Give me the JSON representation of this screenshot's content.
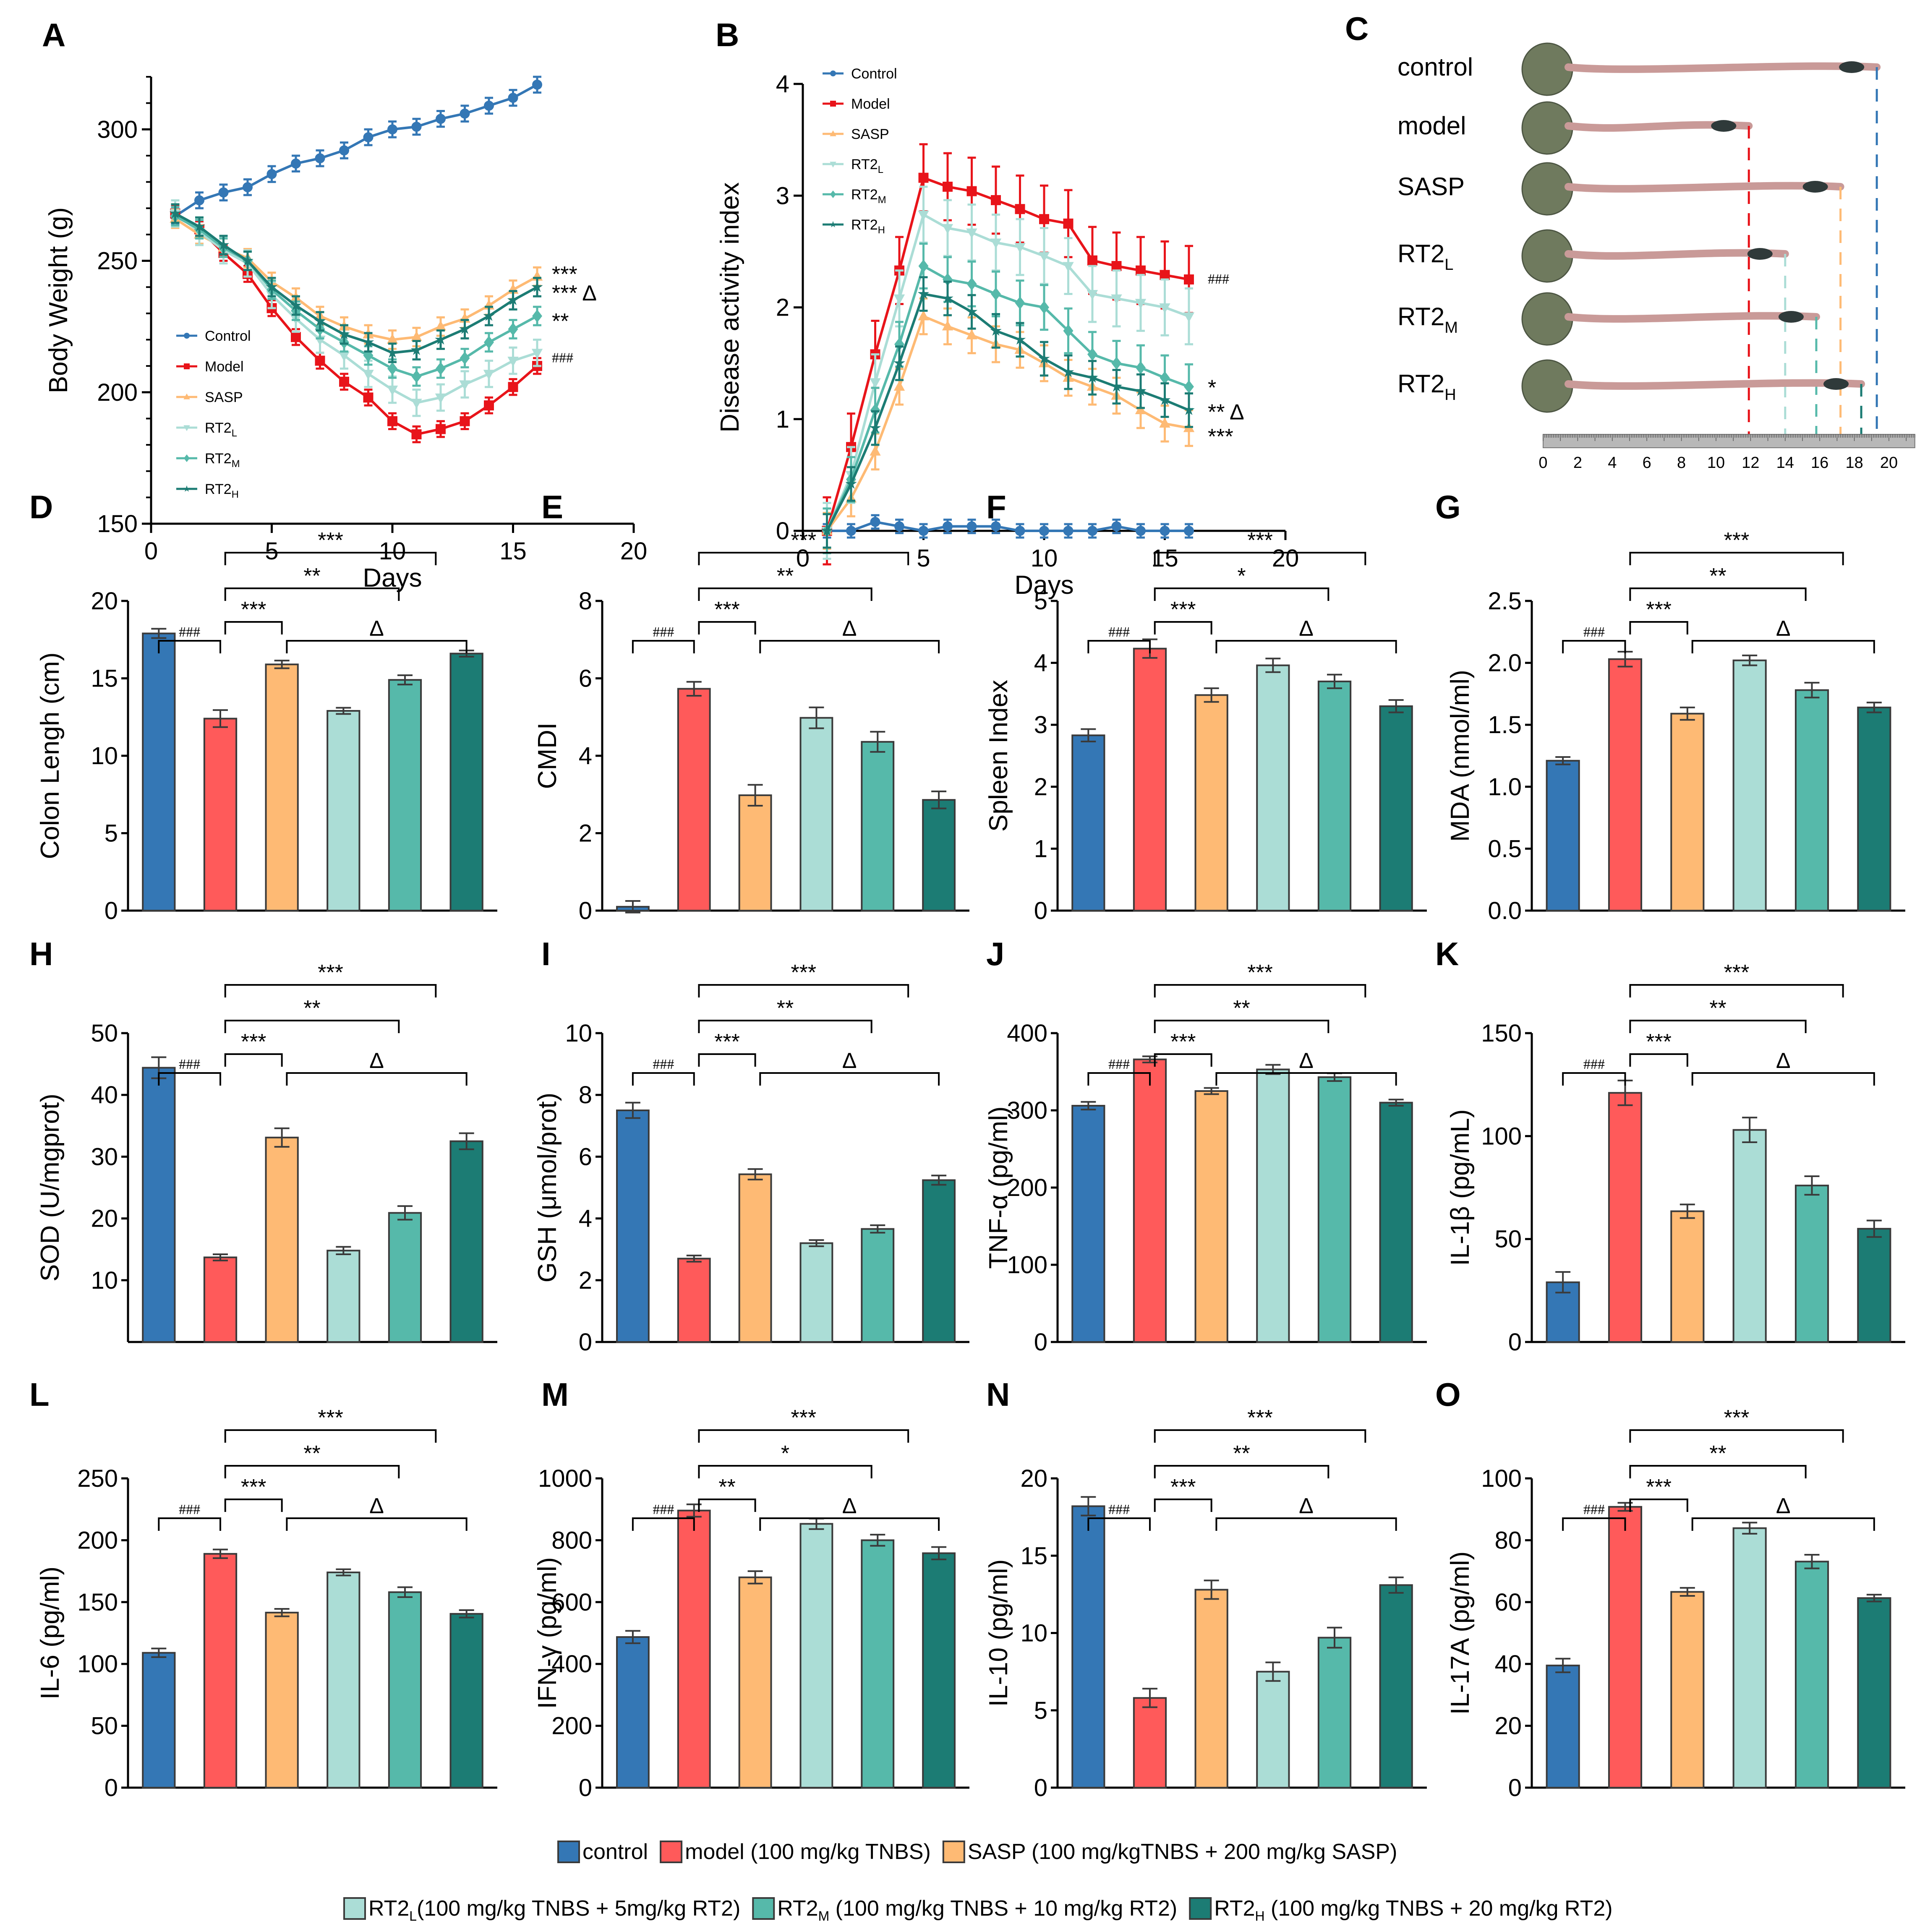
{
  "colors": {
    "control": "#3477b5",
    "model": "#ff5a5a",
    "model_line": "#e8141a",
    "sasp": "#feba74",
    "rt2l": "#abddd6",
    "rt2m": "#56b9aa",
    "rt2h": "#1c7c74",
    "bar_edge": "#3a3a3a"
  },
  "groups": [
    "Control",
    "Model",
    "SASP",
    "RT2L",
    "RT2M",
    "RT2H"
  ],
  "bottom_legend": {
    "row1": [
      {
        "key": "control",
        "label": "control"
      },
      {
        "key": "model",
        "label": "model (100 mg/kg TNBS)"
      },
      {
        "key": "sasp",
        "label": "SASP (100 mg/kgTNBS  + 200 mg/kg SASP)"
      }
    ],
    "row2": [
      {
        "key": "rt2l",
        "label_main": "RT2",
        "label_sub": "L",
        "label_rest": "(100 mg/kg TNBS + 5mg/kg RT2)"
      },
      {
        "key": "rt2m",
        "label_main": "RT2",
        "label_sub": "M",
        "label_rest": " (100 mg/kg TNBS + 10 mg/kg RT2)"
      },
      {
        "key": "rt2h",
        "label_main": "RT2",
        "label_sub": "H",
        "label_rest": " (100 mg/kg TNBS + 20 mg/kg RT2)"
      }
    ]
  },
  "panel_c": {
    "letter": "C",
    "rows": [
      {
        "main": "control",
        "sub": "",
        "length_cm": 19.3,
        "key": "control"
      },
      {
        "main": "model",
        "sub": "",
        "length_cm": 11.9,
        "key": "model"
      },
      {
        "main": "SASP",
        "sub": "",
        "length_cm": 17.2,
        "key": "sasp"
      },
      {
        "main": "RT2",
        "sub": "L",
        "length_cm": 14.0,
        "key": "rt2l"
      },
      {
        "main": "RT2",
        "sub": "M",
        "length_cm": 15.8,
        "key": "rt2m"
      },
      {
        "main": "RT2",
        "sub": "H",
        "length_cm": 18.4,
        "key": "rt2h"
      }
    ],
    "ruler_ticks": [
      "0",
      "2",
      "4",
      "6",
      "8",
      "10",
      "12",
      "14",
      "16",
      "18",
      "20"
    ]
  },
  "chart_data": [
    {
      "id": "A",
      "type": "line",
      "title": "",
      "xlabel": "Days",
      "ylabel": "Body Weight (g)",
      "xlim": [
        0,
        20
      ],
      "ylim": [
        150,
        320
      ],
      "xticks": [
        0,
        5,
        10,
        15,
        20
      ],
      "yticks": [
        150,
        200,
        250,
        300
      ],
      "legend_position": "middle-left",
      "x": [
        1,
        2,
        3,
        4,
        5,
        6,
        7,
        8,
        9,
        10,
        11,
        12,
        13,
        14,
        15,
        16
      ],
      "series": [
        {
          "name": "Control",
          "key": "control",
          "marker": "circle",
          "values": [
            267,
            273,
            276,
            278,
            283,
            287,
            289,
            292,
            297,
            300,
            301,
            304,
            306,
            309,
            312,
            317
          ],
          "err": 3
        },
        {
          "name": "Model",
          "key": "model_line",
          "marker": "square",
          "values": [
            268,
            262,
            253,
            245,
            232,
            221,
            212,
            204,
            198,
            189,
            184,
            186,
            189,
            195,
            202,
            210
          ],
          "err": 3
        },
        {
          "name": "SASP",
          "key": "sasp",
          "marker": "triangle-up",
          "values": [
            266,
            260,
            255,
            251,
            242,
            236,
            229,
            225,
            222,
            220,
            221,
            225,
            228,
            233,
            239,
            244
          ],
          "err": 3.5
        },
        {
          "name": "RT2L",
          "sub": "L",
          "key": "rt2l",
          "marker": "triangle-down",
          "values": [
            268,
            261,
            254,
            249,
            237,
            228,
            220,
            214,
            207,
            201,
            196,
            198,
            203,
            207,
            212,
            215
          ],
          "err": 5
        },
        {
          "name": "RT2M",
          "sub": "M",
          "key": "rt2m",
          "marker": "diamond",
          "values": [
            267,
            262,
            255,
            250,
            239,
            231,
            224,
            219,
            214,
            209,
            206,
            209,
            213,
            219,
            224,
            229
          ],
          "err": 3.5
        },
        {
          "name": "RT2H",
          "sub": "H",
          "key": "rt2h",
          "marker": "star",
          "values": [
            268,
            263,
            256,
            250,
            240,
            233,
            227,
            222,
            219,
            215,
            216,
            220,
            224,
            229,
            235,
            240
          ],
          "err": 3.5
        }
      ],
      "annotations": [
        "***",
        "*** Δ",
        "**",
        "###"
      ]
    },
    {
      "id": "B",
      "type": "line",
      "title": "",
      "xlabel": "Days",
      "ylabel": "Disease activity index",
      "xlim": [
        0,
        20
      ],
      "ylim": [
        0,
        4
      ],
      "xticks": [
        0,
        5,
        10,
        15,
        20
      ],
      "yticks": [
        0,
        1,
        2,
        3,
        4
      ],
      "legend_position": "top-left",
      "x": [
        1,
        2,
        3,
        4,
        5,
        6,
        7,
        8,
        9,
        10,
        11,
        12,
        13,
        14,
        15,
        16
      ],
      "series": [
        {
          "name": "Control",
          "key": "control",
          "marker": "circle",
          "values": [
            0,
            0,
            0.08,
            0.04,
            0,
            0.04,
            0.04,
            0.04,
            0,
            0,
            0,
            0,
            0.04,
            0,
            0,
            0
          ],
          "err": 0.06
        },
        {
          "name": "Model",
          "key": "model_line",
          "marker": "square",
          "values": [
            0,
            0.75,
            1.58,
            2.33,
            3.16,
            3.08,
            3.04,
            2.96,
            2.88,
            2.79,
            2.75,
            2.42,
            2.37,
            2.33,
            2.29,
            2.25
          ],
          "err": 0.3
        },
        {
          "name": "SASP",
          "key": "sasp",
          "marker": "triangle-up",
          "values": [
            0,
            0.29,
            0.71,
            1.29,
            1.92,
            1.83,
            1.75,
            1.67,
            1.62,
            1.5,
            1.37,
            1.29,
            1.21,
            1.08,
            0.96,
            0.92
          ],
          "err": 0.16
        },
        {
          "name": "RT2L",
          "sub": "L",
          "key": "rt2l",
          "marker": "triangle-down",
          "values": [
            0,
            0.5,
            1.33,
            2.08,
            2.83,
            2.71,
            2.67,
            2.58,
            2.54,
            2.46,
            2.37,
            2.12,
            2.08,
            2.04,
            2.0,
            1.92
          ],
          "err": 0.25
        },
        {
          "name": "RT2M",
          "sub": "M",
          "key": "rt2m",
          "marker": "diamond",
          "values": [
            0,
            0.46,
            1.08,
            1.67,
            2.37,
            2.25,
            2.21,
            2.12,
            2.04,
            2.0,
            1.79,
            1.58,
            1.5,
            1.46,
            1.37,
            1.29
          ],
          "err": 0.2
        },
        {
          "name": "RT2H",
          "sub": "H",
          "key": "rt2h",
          "marker": "star",
          "values": [
            0,
            0.42,
            0.92,
            1.5,
            2.12,
            2.08,
            1.96,
            1.79,
            1.71,
            1.54,
            1.42,
            1.37,
            1.29,
            1.25,
            1.17,
            1.08
          ],
          "err": 0.15
        }
      ],
      "annotations": [
        "###",
        "*",
        "** Δ",
        "***"
      ]
    },
    {
      "id": "D",
      "type": "bar",
      "ylabel": "Colon Lengh (cm)",
      "ylim": [
        0,
        20
      ],
      "yticks": [
        0,
        5,
        10,
        15,
        20
      ],
      "categories": [
        "Control",
        "Model",
        "SASP",
        "RT2L",
        "RT2M",
        "RT2H"
      ],
      "values": [
        17.9,
        12.4,
        15.9,
        12.9,
        14.9,
        16.6
      ],
      "err": [
        0.3,
        0.55,
        0.25,
        0.2,
        0.3,
        0.2
      ],
      "brackets": [
        "###",
        "***",
        "**",
        "***",
        "Δ"
      ]
    },
    {
      "id": "E",
      "type": "bar",
      "ylabel": "CMDI",
      "ylim": [
        0,
        8
      ],
      "yticks": [
        0,
        2,
        4,
        6,
        8
      ],
      "categories": [
        "Control",
        "Model",
        "SASP",
        "RT2L",
        "RT2M",
        "RT2H"
      ],
      "values": [
        0.1,
        5.73,
        2.98,
        4.98,
        4.36,
        2.86
      ],
      "err": [
        0.15,
        0.18,
        0.27,
        0.27,
        0.26,
        0.22
      ],
      "brackets": [
        "###",
        "***",
        "**",
        "***",
        "Δ"
      ]
    },
    {
      "id": "F",
      "type": "bar",
      "ylabel": "Spleen Index",
      "ylim": [
        0,
        5
      ],
      "yticks": [
        0,
        1,
        2,
        3,
        4,
        5
      ],
      "categories": [
        "Control",
        "Model",
        "SASP",
        "RT2L",
        "RT2M",
        "RT2H"
      ],
      "values": [
        2.83,
        4.23,
        3.48,
        3.96,
        3.7,
        3.3
      ],
      "err": [
        0.1,
        0.15,
        0.11,
        0.11,
        0.11,
        0.1
      ],
      "brackets": [
        "###",
        "***",
        "*",
        "***",
        "Δ"
      ]
    },
    {
      "id": "G",
      "type": "bar",
      "ylabel": "MDA (nmol/ml)",
      "ylim": [
        0,
        2.5
      ],
      "yticks": [
        0.0,
        0.5,
        1.0,
        1.5,
        2.0,
        2.5
      ],
      "ytick_labels": [
        "0.0",
        "0.5",
        "1.0",
        "1.5",
        "2.0",
        "2.5"
      ],
      "categories": [
        "Control",
        "Model",
        "SASP",
        "RT2L",
        "RT2M",
        "RT2H"
      ],
      "values": [
        1.21,
        2.03,
        1.59,
        2.02,
        1.78,
        1.64
      ],
      "err": [
        0.03,
        0.06,
        0.05,
        0.04,
        0.06,
        0.04
      ],
      "brackets": [
        "###",
        "***",
        "**",
        "***",
        "Δ"
      ]
    },
    {
      "id": "H",
      "type": "bar",
      "ylabel": "SOD (U/mgprot)",
      "ylim": [
        0,
        50
      ],
      "yticks": [
        10,
        20,
        30,
        40,
        50
      ],
      "categories": [
        "Control",
        "Model",
        "SASP",
        "RT2L",
        "RT2M",
        "RT2H"
      ],
      "values": [
        44.4,
        13.7,
        33.1,
        14.8,
        20.9,
        32.5
      ],
      "err": [
        1.7,
        0.5,
        1.5,
        0.6,
        1.1,
        1.3
      ],
      "brackets": [
        "###",
        "***",
        "**",
        "***",
        "Δ"
      ]
    },
    {
      "id": "I",
      "type": "bar",
      "ylabel": "GSH (μmol/prot)",
      "ylim": [
        0,
        10
      ],
      "yticks": [
        0,
        2,
        4,
        6,
        8,
        10
      ],
      "categories": [
        "Control",
        "Model",
        "SASP",
        "RT2L",
        "RT2M",
        "RT2H"
      ],
      "values": [
        7.5,
        2.7,
        5.43,
        3.2,
        3.66,
        5.24
      ],
      "err": [
        0.25,
        0.1,
        0.17,
        0.1,
        0.12,
        0.15
      ],
      "brackets": [
        "###",
        "***",
        "**",
        "***",
        "Δ"
      ]
    },
    {
      "id": "J",
      "type": "bar",
      "ylabel": "TNF-α (pg/ml)",
      "ylim": [
        0,
        400
      ],
      "yticks": [
        0,
        100,
        200,
        300,
        400
      ],
      "categories": [
        "Control",
        "Model",
        "SASP",
        "RT2L",
        "RT2M",
        "RT2H"
      ],
      "values": [
        306,
        366,
        325,
        353,
        343,
        310
      ],
      "err": [
        5,
        4,
        4,
        6,
        5,
        4
      ],
      "brackets": [
        "###",
        "***",
        "**",
        "***",
        "Δ"
      ]
    },
    {
      "id": "K",
      "type": "bar",
      "ylabel": "IL-1β (pg/mL)",
      "ylim": [
        0,
        150
      ],
      "yticks": [
        0,
        50,
        100,
        150
      ],
      "categories": [
        "Control",
        "Model",
        "SASP",
        "RT2L",
        "RT2M",
        "RT2H"
      ],
      "values": [
        29,
        121,
        63.5,
        103,
        76,
        55
      ],
      "err": [
        5,
        6,
        3.3,
        6,
        4.5,
        4
      ],
      "brackets": [
        "###",
        "***",
        "**",
        "***",
        "Δ"
      ]
    },
    {
      "id": "L",
      "type": "bar",
      "ylabel": "IL-6 (pg/ml)",
      "ylim": [
        0,
        250
      ],
      "yticks": [
        0,
        50,
        100,
        150,
        200,
        250
      ],
      "categories": [
        "Control",
        "Model",
        "SASP",
        "RT2L",
        "RT2M",
        "RT2H"
      ],
      "values": [
        109,
        189,
        141.5,
        174,
        158,
        140.5
      ],
      "err": [
        3.5,
        3.5,
        3,
        2.5,
        4,
        3
      ],
      "brackets": [
        "###",
        "***",
        "**",
        "***",
        "Δ"
      ]
    },
    {
      "id": "M",
      "type": "bar",
      "ylabel": "IFN-γ (pg/ml)",
      "ylim": [
        0,
        1000
      ],
      "yticks": [
        0,
        200,
        400,
        600,
        800,
        1000
      ],
      "categories": [
        "Control",
        "Model",
        "SASP",
        "RT2L",
        "RT2M",
        "RT2H"
      ],
      "values": [
        487,
        896,
        680,
        853,
        800,
        758
      ],
      "err": [
        20,
        20,
        20,
        17,
        18,
        20
      ],
      "brackets": [
        "###",
        "***",
        "*",
        "**",
        "Δ"
      ]
    },
    {
      "id": "N",
      "type": "bar",
      "ylabel": "IL-10 (pg/ml)",
      "ylim": [
        0,
        20
      ],
      "yticks": [
        0,
        5,
        10,
        15,
        20
      ],
      "categories": [
        "Control",
        "Model",
        "SASP",
        "RT2L",
        "RT2M",
        "RT2H"
      ],
      "values": [
        18.2,
        5.8,
        12.8,
        7.5,
        9.7,
        13.1
      ],
      "err": [
        0.6,
        0.6,
        0.6,
        0.6,
        0.65,
        0.5
      ],
      "brackets": [
        "###",
        "***",
        "**",
        "***",
        "Δ"
      ]
    },
    {
      "id": "O",
      "type": "bar",
      "ylabel": "IL-17A (pg/ml)",
      "ylim": [
        0,
        100
      ],
      "yticks": [
        0,
        20,
        40,
        60,
        80,
        100
      ],
      "categories": [
        "Control",
        "Model",
        "SASP",
        "RT2L",
        "RT2M",
        "RT2H"
      ],
      "values": [
        39.5,
        90.8,
        63.3,
        83.9,
        73.1,
        61.3
      ],
      "err": [
        2.2,
        1.3,
        1.3,
        1.8,
        2.2,
        1.1
      ],
      "brackets": [
        "###",
        "***",
        "**",
        "***",
        "Δ"
      ]
    }
  ]
}
